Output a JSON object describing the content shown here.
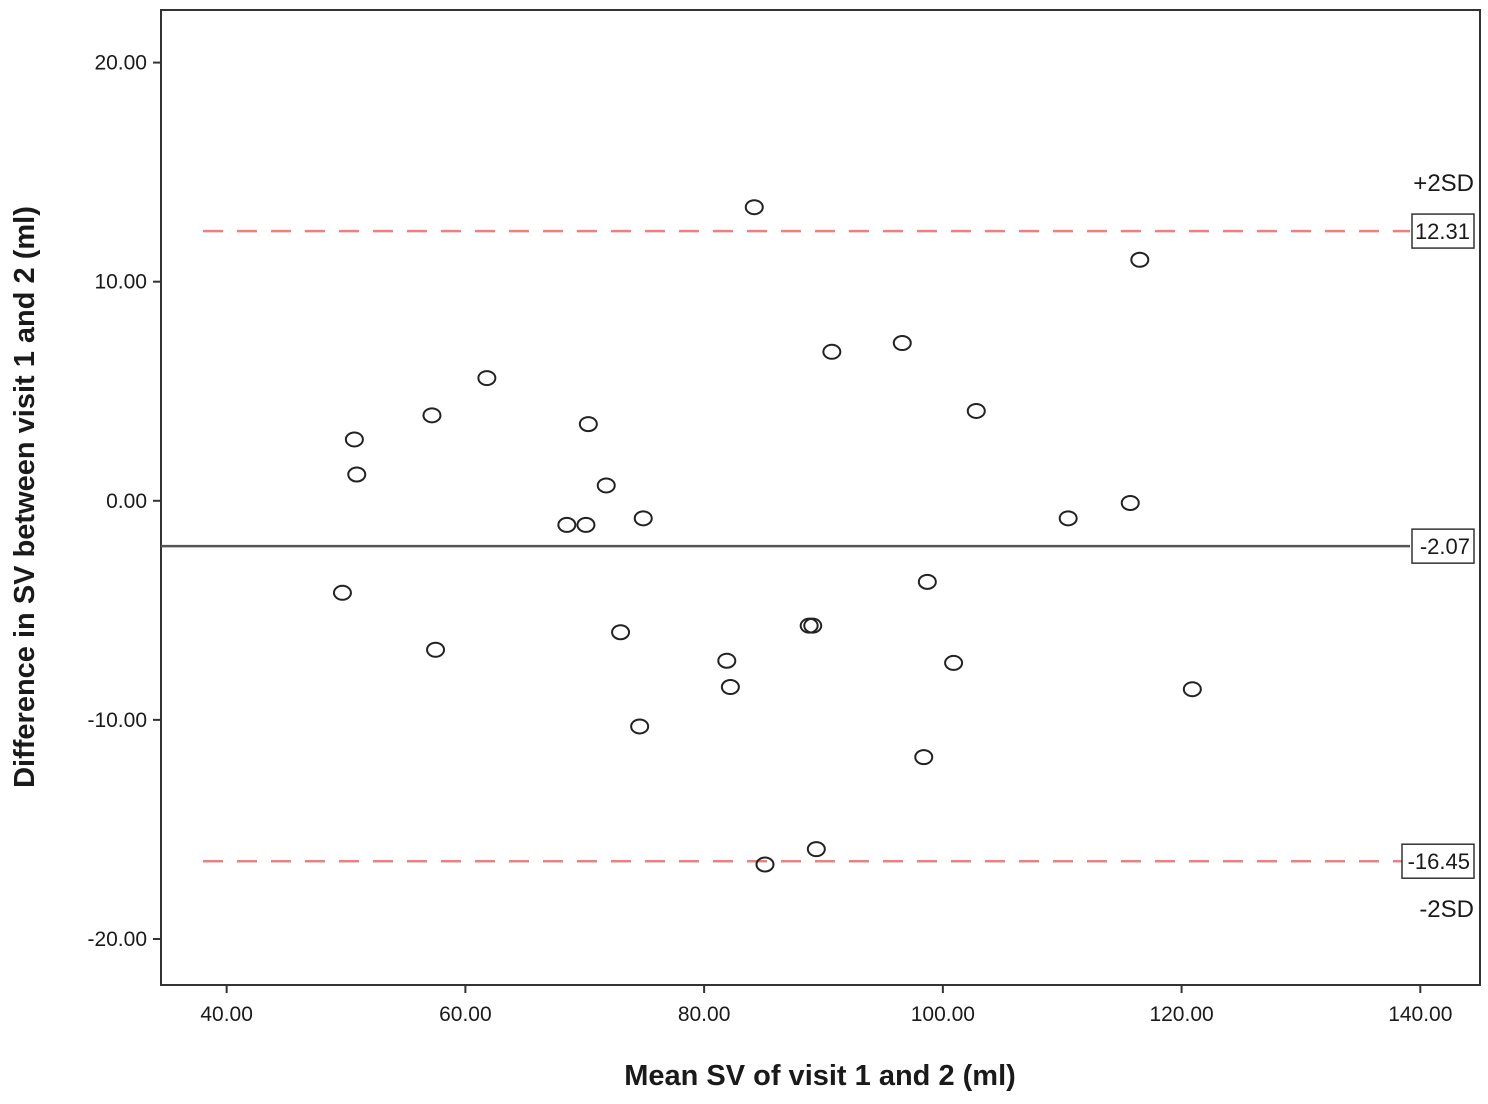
{
  "chart_data": {
    "type": "scatter",
    "xlabel": "Mean SV of visit 1 and 2 (ml)",
    "ylabel": "Difference in SV between visit 1 and 2 (ml)",
    "xlim": [
      34.5,
      145
    ],
    "ylim": [
      -22.1,
      22.4
    ],
    "x_ticks": [
      "40.00",
      "60.00",
      "80.00",
      "100.00",
      "120.00",
      "140.00"
    ],
    "y_ticks": [
      "20.00",
      "10.00",
      "0.00",
      "-10.00",
      "-20.00"
    ],
    "grid": false,
    "reference_lines": [
      {
        "name": "mean",
        "value": -2.07,
        "label": "-2.07",
        "style": "solid",
        "color": "#555555"
      },
      {
        "name": "upper",
        "value": 12.31,
        "label": "12.31",
        "style": "dashed",
        "color": "#f08080",
        "tag": "+2SD"
      },
      {
        "name": "lower",
        "value": -16.45,
        "label": "-16.45",
        "style": "dashed",
        "color": "#f08080",
        "tag": "-2SD"
      }
    ],
    "points": [
      {
        "x": 84.2,
        "y": 13.4
      },
      {
        "x": 116.5,
        "y": 11.0
      },
      {
        "x": 96.6,
        "y": 7.2
      },
      {
        "x": 90.7,
        "y": 6.8
      },
      {
        "x": 61.8,
        "y": 5.6
      },
      {
        "x": 102.8,
        "y": 4.1
      },
      {
        "x": 57.2,
        "y": 3.9
      },
      {
        "x": 70.3,
        "y": 3.5
      },
      {
        "x": 50.7,
        "y": 2.8
      },
      {
        "x": 50.9,
        "y": 1.2
      },
      {
        "x": 71.8,
        "y": 0.7
      },
      {
        "x": 115.7,
        "y": -0.1
      },
      {
        "x": 74.9,
        "y": -0.8
      },
      {
        "x": 110.5,
        "y": -0.8
      },
      {
        "x": 68.5,
        "y": -1.1
      },
      {
        "x": 70.1,
        "y": -1.1
      },
      {
        "x": 98.7,
        "y": -3.7
      },
      {
        "x": 49.7,
        "y": -4.2
      },
      {
        "x": 88.8,
        "y": -5.7
      },
      {
        "x": 89.1,
        "y": -5.7
      },
      {
        "x": 73.0,
        "y": -6.0
      },
      {
        "x": 57.5,
        "y": -6.8
      },
      {
        "x": 81.9,
        "y": -7.3
      },
      {
        "x": 100.9,
        "y": -7.4
      },
      {
        "x": 82.2,
        "y": -8.5
      },
      {
        "x": 120.9,
        "y": -8.6
      },
      {
        "x": 74.6,
        "y": -10.3
      },
      {
        "x": 98.4,
        "y": -11.7
      },
      {
        "x": 89.4,
        "y": -15.9
      },
      {
        "x": 85.1,
        "y": -16.6
      }
    ]
  }
}
